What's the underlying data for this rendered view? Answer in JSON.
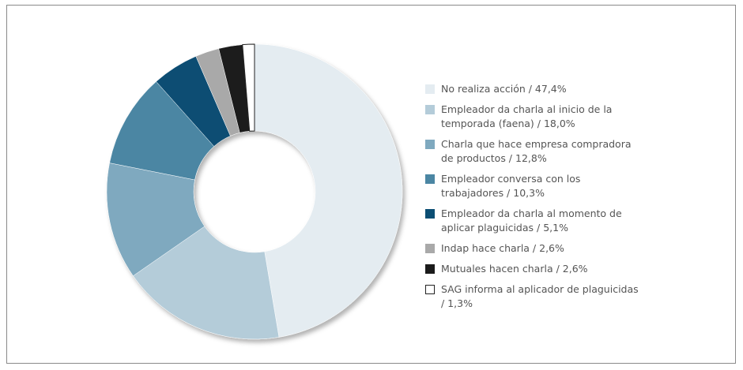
{
  "chart_data": {
    "type": "donut",
    "categories": [
      "No realiza acción / 47,4%",
      "Empleador da charla al inicio de la temporada (faena) / 18,0%",
      "Charla que hace empresa compradora de productos / 12,8%",
      "Empleador conversa con los trabajadores / 10,3%",
      "Empleador da charla al momento de aplicar plaguicidas / 5,1%",
      "Indap hace charla / 2,6%",
      "Mutuales hacen charla / 2,6%",
      "SAG informa al aplicador de plaguicidas / 1,3%"
    ],
    "values": [
      47.4,
      18.0,
      12.8,
      10.3,
      5.1,
      2.6,
      2.6,
      1.3
    ],
    "colors": [
      "#e4ecf1",
      "#b4ccd9",
      "#7fa9bf",
      "#4b86a3",
      "#0b4e73",
      "#a9a9a9",
      "#1b1b1b",
      "#ffffff"
    ],
    "legend": "right"
  }
}
